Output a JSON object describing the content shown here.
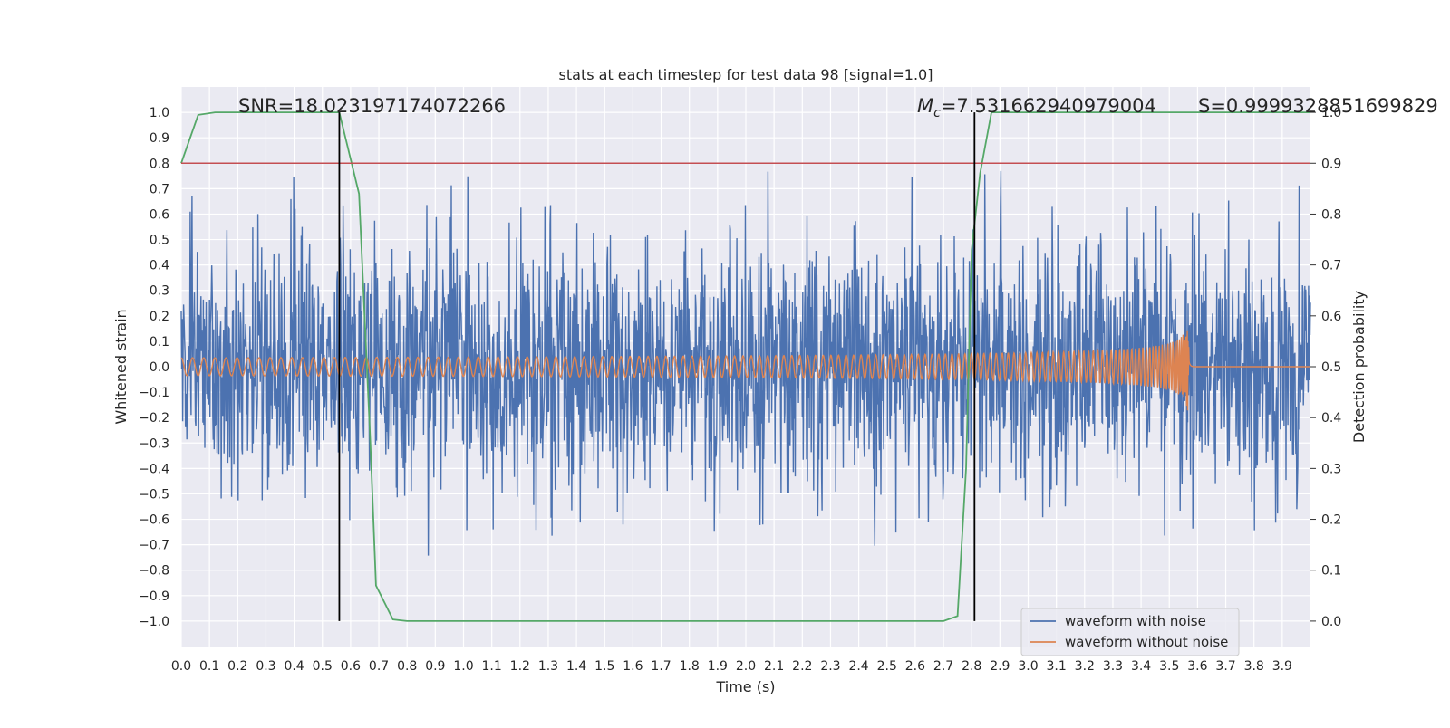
{
  "chart_data": {
    "type": "line",
    "title": "stats at each timestep for test data 98 [signal=1.0]",
    "xlabel": "Time (s)",
    "ylabel_left": "Whitened strain",
    "ylabel_right": "Detection probability",
    "xlim": [
      0.0,
      4.0
    ],
    "ylim_left": [
      -1.1,
      1.1
    ],
    "ylim_right": [
      -0.05,
      1.05
    ],
    "x_ticks": [
      "0.0",
      "0.1",
      "0.2",
      "0.3",
      "0.4",
      "0.5",
      "0.6",
      "0.7",
      "0.8",
      "0.9",
      "1.0",
      "1.1",
      "1.2",
      "1.3",
      "1.4",
      "1.5",
      "1.6",
      "1.7",
      "1.8",
      "1.9",
      "2.0",
      "2.1",
      "2.2",
      "2.3",
      "2.4",
      "2.5",
      "2.6",
      "2.7",
      "2.8",
      "2.9",
      "3.0",
      "3.1",
      "3.2",
      "3.3",
      "3.4",
      "3.5",
      "3.6",
      "3.7",
      "3.8",
      "3.9"
    ],
    "y_ticks_left": [
      "1.0",
      "0.9",
      "0.8",
      "0.7",
      "0.6",
      "0.5",
      "0.4",
      "0.3",
      "0.2",
      "0.1",
      "0.0",
      "−0.1",
      "−0.2",
      "−0.3",
      "−0.4",
      "−0.5",
      "−0.6",
      "−0.7",
      "−0.8",
      "−0.9",
      "−1.0"
    ],
    "y_ticks_right": [
      "1.0",
      "0.9",
      "0.8",
      "0.7",
      "0.6",
      "0.5",
      "0.4",
      "0.3",
      "0.2",
      "0.1",
      "0.0"
    ],
    "annotations": {
      "snr": "SNR=18.023197174072266",
      "mc_symbol": "M",
      "mc_sub": "c",
      "mc_value": "=7.531662940979004",
      "s": "S=0.9999328851699829"
    },
    "grid": true,
    "legend_position": "lower-right",
    "series": [
      {
        "name": "waveform with noise",
        "axis": "left",
        "color": "#4c72b0",
        "kind": "noise",
        "amplitude_std": 0.25
      },
      {
        "name": "waveform without noise",
        "axis": "left",
        "color": "#dd8452",
        "kind": "chirp",
        "start_amplitude": 0.035,
        "peak_time": 3.57,
        "peak_amplitude": 0.45
      },
      {
        "name": "detection probability",
        "axis": "right",
        "color": "#55a868",
        "x": [
          0.0,
          0.06,
          0.12,
          0.5,
          0.56,
          0.63,
          0.67,
          0.69,
          0.75,
          0.8,
          1.5,
          2.6,
          2.7,
          2.75,
          2.78,
          2.8,
          2.83,
          2.87,
          3.2,
          4.0
        ],
        "y": [
          0.9,
          0.995,
          1.0,
          1.0,
          1.0,
          0.84,
          0.35,
          0.07,
          0.003,
          0.0,
          0.0,
          0.0,
          0.0,
          0.01,
          0.3,
          0.73,
          0.88,
          1.0,
          1.0,
          1.0
        ]
      }
    ],
    "threshold_line": {
      "axis": "right",
      "y": 0.9,
      "color": "#c44e52"
    },
    "event_lines": {
      "x": [
        0.56,
        2.81
      ],
      "color": "#000000"
    }
  }
}
